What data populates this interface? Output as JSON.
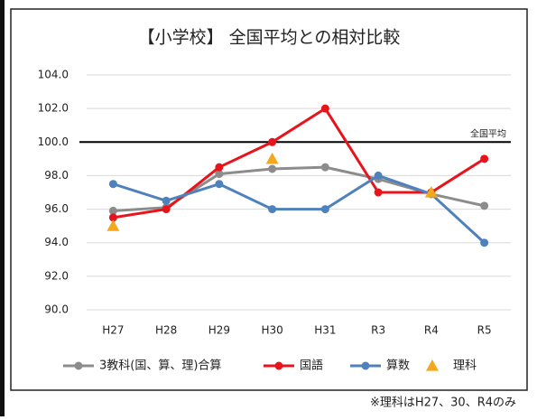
{
  "chart_data": {
    "type": "line",
    "title": "【小学校】 全国平均との相対比較",
    "categories": [
      "H27",
      "H28",
      "H29",
      "H30",
      "H31",
      "R3",
      "R4",
      "R5"
    ],
    "series": [
      {
        "name": "3教科(国、算、理)合算",
        "color": "#8c8c8c",
        "values": [
          95.9,
          96.1,
          98.1,
          98.4,
          98.5,
          97.8,
          96.9,
          96.2
        ]
      },
      {
        "name": "国語",
        "color": "#e8141b",
        "values": [
          95.5,
          96.0,
          98.5,
          100.0,
          102.0,
          97.0,
          97.0,
          99.0
        ]
      },
      {
        "name": "算数",
        "color": "#4f81bd",
        "values": [
          97.5,
          96.5,
          97.5,
          96.0,
          96.0,
          98.0,
          96.9,
          94.0
        ]
      },
      {
        "name": "理科",
        "color": "#f4a81d",
        "marker": "triangle",
        "line": false,
        "values": [
          95.0,
          null,
          null,
          99.0,
          null,
          null,
          97.0,
          null
        ]
      }
    ],
    "ylim": [
      90,
      104
    ],
    "yticks": [
      {
        "value": 90,
        "label": "90.0"
      },
      {
        "value": 92,
        "label": "92.0"
      },
      {
        "value": 94,
        "label": "94.0"
      },
      {
        "value": 96,
        "label": "96.0"
      },
      {
        "value": 98,
        "label": "98.0"
      },
      {
        "value": 100,
        "label": "100.0"
      },
      {
        "value": 102,
        "label": "102.0"
      },
      {
        "value": 104,
        "label": "104.0"
      }
    ],
    "grid": true,
    "reference_line": {
      "value": 100,
      "label": "全国平均"
    },
    "legend": "bottom",
    "note": "※理科はH27、30、R4のみ"
  }
}
